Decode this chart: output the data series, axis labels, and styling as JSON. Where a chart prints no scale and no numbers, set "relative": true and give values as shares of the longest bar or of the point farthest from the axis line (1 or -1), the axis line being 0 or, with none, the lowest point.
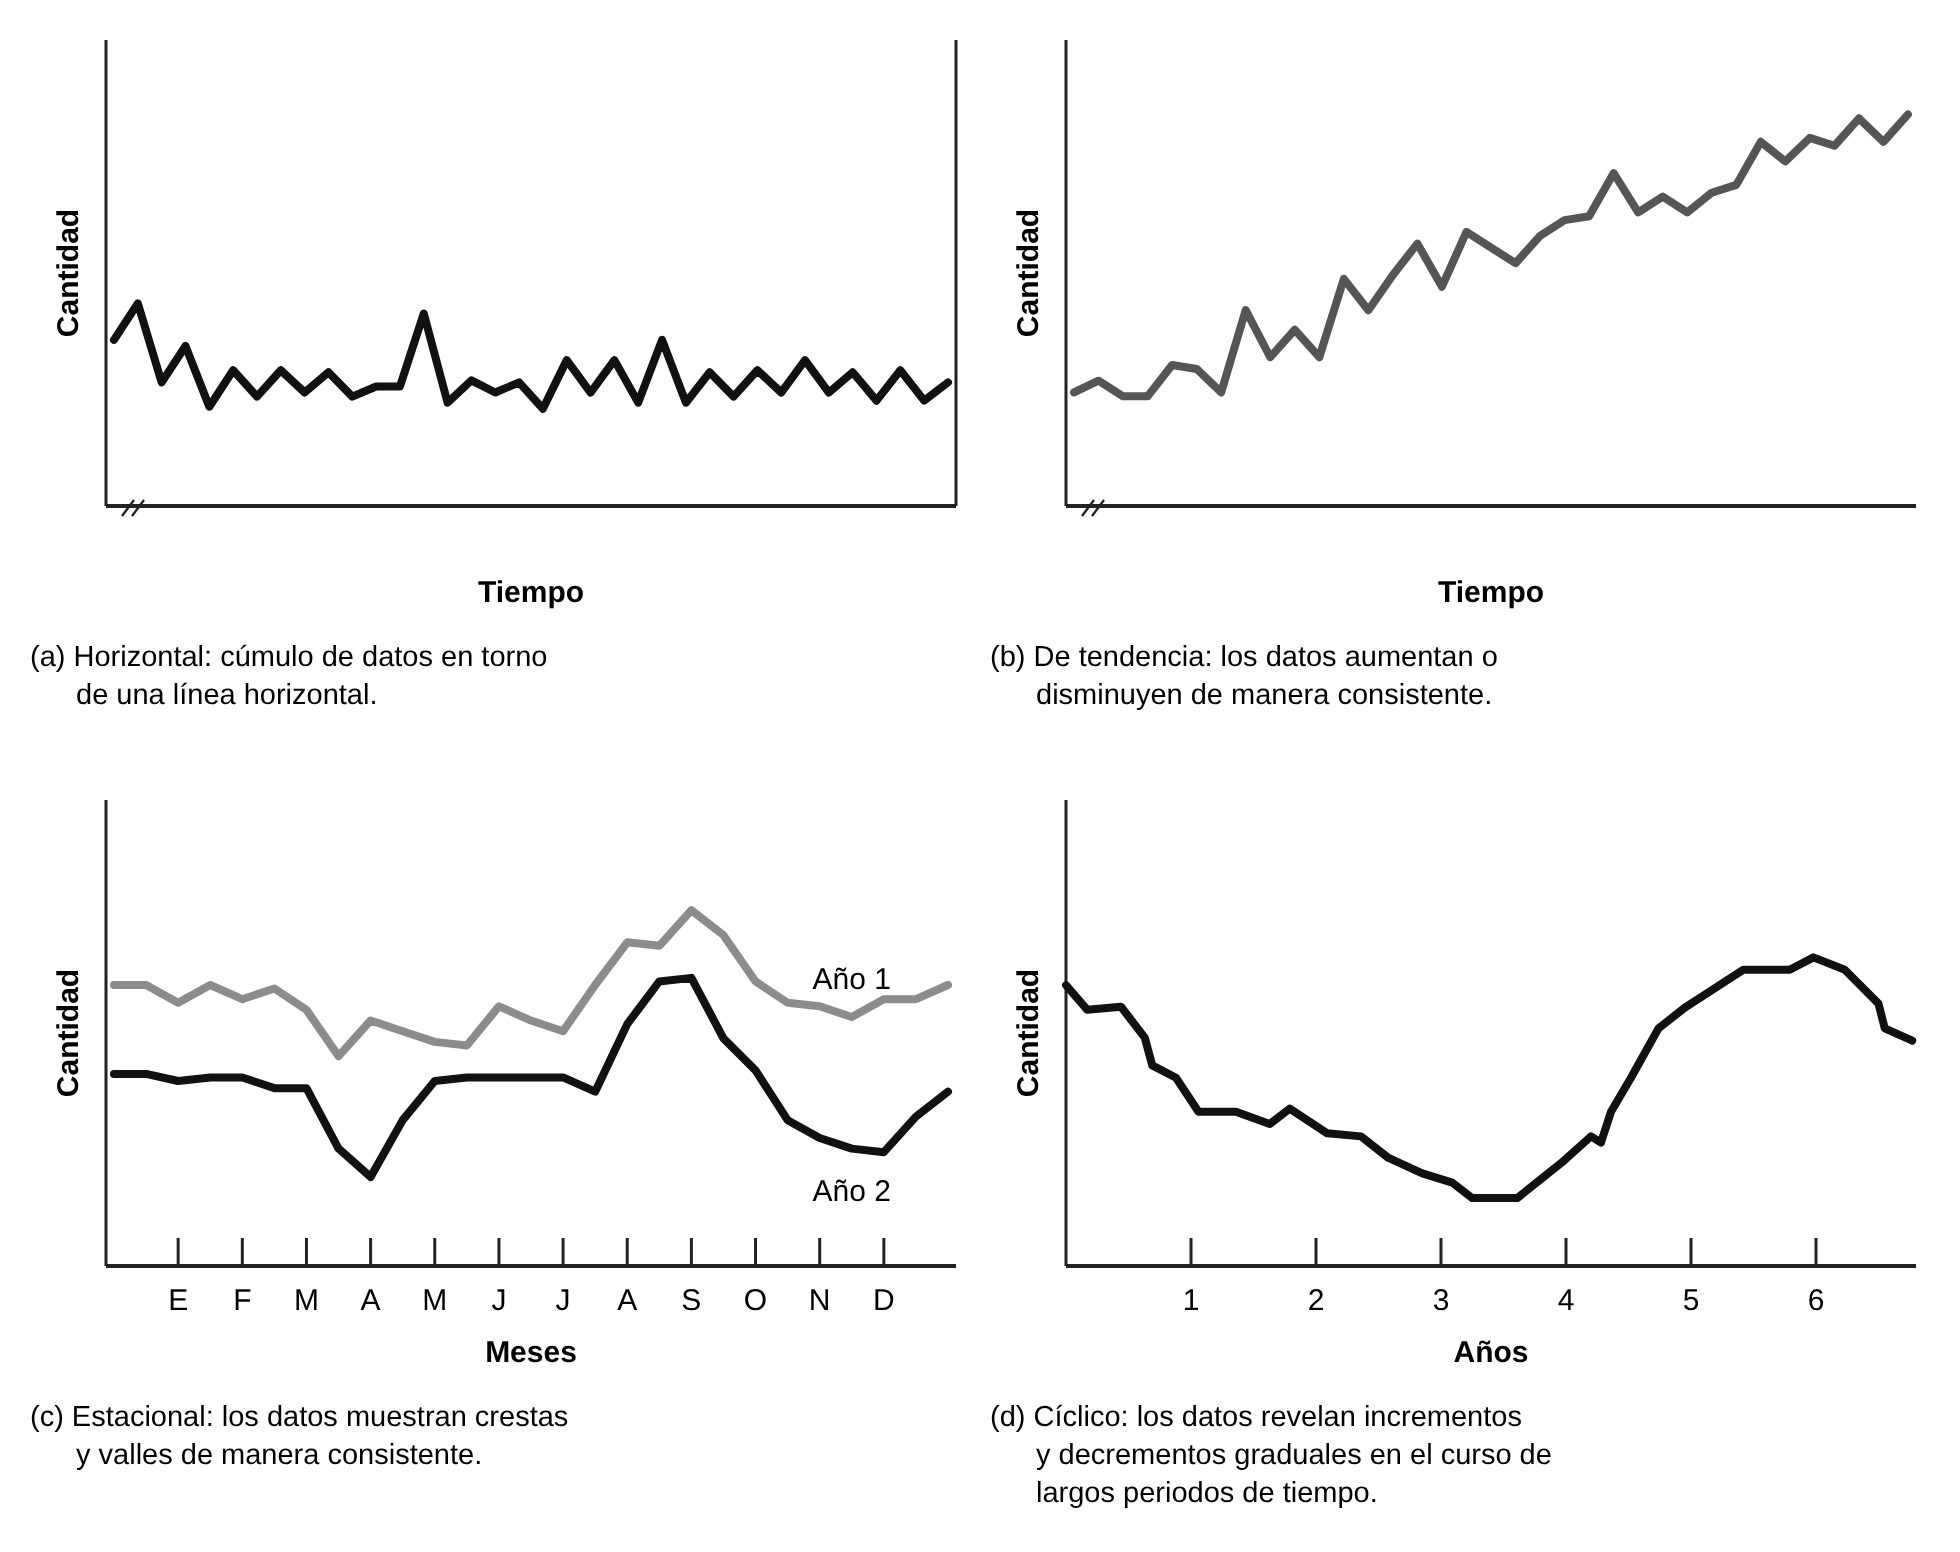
{
  "chart_data": [
    {
      "type": "line",
      "xlabel": "Tiempo",
      "ylabel": "Cantidad",
      "relative": true,
      "annotations": [
        "(a) Horizontal: cúmulo de datos en torno de una línea horizontal."
      ],
      "categories": [
        null,
        null,
        null,
        null,
        null,
        null,
        null,
        null,
        null,
        null,
        null,
        null,
        null,
        null,
        null,
        null,
        null,
        null,
        null,
        null,
        null,
        null,
        null,
        null,
        null,
        null,
        null,
        null,
        null,
        null,
        null,
        null,
        null,
        null,
        null,
        null
      ],
      "series": [
        {
          "color": "#111111",
          "values": [
            0.82,
            1,
            0.61,
            0.79,
            0.49,
            0.67,
            0.54,
            0.67,
            0.56,
            0.66,
            0.54,
            0.59,
            0.59,
            0.95,
            0.51,
            0.62,
            0.56,
            0.61,
            0.48,
            0.72,
            0.56,
            0.72,
            0.51,
            0.82,
            0.51,
            0.66,
            0.54,
            0.67,
            0.56,
            0.72,
            0.56,
            0.66,
            0.52,
            0.67,
            0.52,
            0.61
          ]
        }
      ]
    },
    {
      "type": "line",
      "xlabel": "Tiempo",
      "ylabel": "Cantidad",
      "relative": true,
      "annotations": [
        "(b) De tendencia: los datos aumentan o disminuyen de manera consistente."
      ],
      "categories": [
        null,
        null,
        null,
        null,
        null,
        null,
        null,
        null,
        null,
        null,
        null,
        null,
        null,
        null,
        null,
        null,
        null,
        null,
        null,
        null,
        null,
        null,
        null,
        null,
        null,
        null,
        null,
        null,
        null,
        null,
        null,
        null,
        null,
        null,
        null
      ],
      "series": [
        {
          "color": "#555555",
          "values": [
            0.29,
            0.32,
            0.28,
            0.28,
            0.36,
            0.35,
            0.29,
            0.5,
            0.38,
            0.45,
            0.38,
            0.58,
            0.5,
            0.59,
            0.67,
            0.56,
            0.7,
            0.66,
            0.62,
            0.69,
            0.73,
            0.74,
            0.85,
            0.75,
            0.79,
            0.75,
            0.8,
            0.82,
            0.93,
            0.88,
            0.94,
            0.92,
            0.99,
            0.93,
            1
          ]
        }
      ]
    },
    {
      "type": "line",
      "xlabel": "Meses",
      "ylabel": "Cantidad",
      "relative": true,
      "annotations": [
        "(c) Estacional: los datos muestran crestas y valles de manera consistente."
      ],
      "categories": [
        null,
        null,
        "E",
        null,
        "F",
        null,
        "M",
        null,
        "A",
        null,
        "M",
        null,
        "J",
        null,
        "J",
        null,
        "A",
        null,
        "S",
        null,
        "O",
        null,
        "N",
        null,
        "D",
        null,
        null
      ],
      "series": [
        {
          "name": "Año 1",
          "color": "#8c8c8c",
          "values": [
            0.79,
            0.79,
            0.74,
            0.79,
            0.75,
            0.78,
            0.72,
            0.59,
            0.69,
            0.66,
            0.63,
            0.62,
            0.73,
            0.69,
            0.66,
            0.79,
            0.91,
            0.9,
            1,
            0.93,
            0.8,
            0.74,
            0.73,
            0.7,
            0.75,
            0.75,
            0.79
          ]
        },
        {
          "name": "Año 2",
          "color": "#111111",
          "values": [
            0.54,
            0.54,
            0.52,
            0.53,
            0.53,
            0.5,
            0.5,
            0.33,
            0.25,
            0.41,
            0.52,
            0.53,
            0.53,
            0.53,
            0.53,
            0.49,
            0.68,
            0.8,
            0.81,
            0.64,
            0.55,
            0.41,
            0.36,
            0.33,
            0.32,
            0.42,
            0.49
          ]
        }
      ]
    },
    {
      "type": "line",
      "xlabel": "Años",
      "ylabel": "Cantidad",
      "relative": true,
      "annotations": [
        "(d) Cíclico: los datos revelan incrementos y decrementos graduales en el curso de largos periodos de tiempo."
      ],
      "xlim": [
        0,
        6.8
      ],
      "xticks": [
        1,
        2,
        3,
        4,
        5,
        6
      ],
      "x": [
        0,
        0.17,
        0.44,
        0.63,
        0.69,
        0.88,
        1.06,
        1.36,
        1.63,
        1.79,
        2.09,
        2.36,
        2.58,
        2.85,
        3.09,
        3.25,
        3.61,
        3.98,
        4.2,
        4.28,
        4.36,
        4.52,
        4.74,
        4.96,
        5.42,
        5.79,
        5.98,
        6.23,
        6.5,
        6.55,
        6.77
      ],
      "series": [
        {
          "color": "#111111",
          "values": [
            0.91,
            0.83,
            0.84,
            0.74,
            0.65,
            0.61,
            0.5,
            0.5,
            0.46,
            0.51,
            0.43,
            0.42,
            0.35,
            0.3,
            0.27,
            0.22,
            0.22,
            0.34,
            0.42,
            0.4,
            0.5,
            0.61,
            0.77,
            0.84,
            0.96,
            0.96,
            1,
            0.96,
            0.85,
            0.77,
            0.73
          ]
        }
      ]
    }
  ]
}
